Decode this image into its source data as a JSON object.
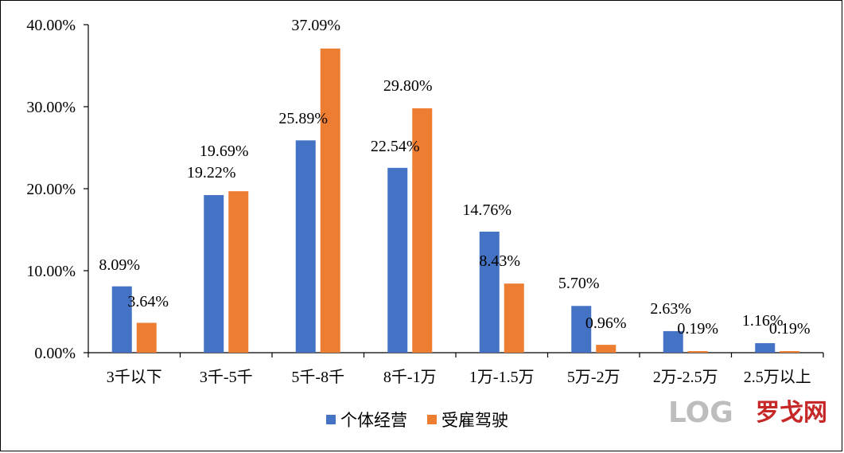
{
  "chart_data": {
    "type": "bar",
    "categories": [
      "3千以下",
      "3千-5千",
      "5千-8千",
      "8千-1万",
      "1万-1.5万",
      "5万-2万",
      "2万-2.5万",
      "2.5万以上"
    ],
    "series": [
      {
        "name": "个体经营",
        "values": [
          8.09,
          19.22,
          25.89,
          22.54,
          14.76,
          5.7,
          2.63,
          1.16
        ],
        "labels": [
          "8.09%",
          "19.22%",
          "25.89%",
          "22.54%",
          "14.76%",
          "5.70%",
          "2.63%",
          "1.16%"
        ],
        "color": "#4472c4"
      },
      {
        "name": "受雇驾驶",
        "values": [
          3.64,
          19.69,
          37.09,
          29.8,
          8.43,
          0.96,
          0.19,
          0.19
        ],
        "labels": [
          "3.64%",
          "19.69%",
          "37.09%",
          "29.80%",
          "8.43%",
          "0.96%",
          "0.19%",
          "0.19%"
        ],
        "color": "#ed7d31"
      }
    ],
    "yticks": [
      "0.00%",
      "10.00%",
      "20.00%",
      "30.00%",
      "40.00%"
    ],
    "ylim": [
      0,
      40
    ],
    "grid": false,
    "legend": "bottom",
    "title": "",
    "xlabel": "",
    "ylabel": ""
  },
  "watermark": {
    "log_text": "LOG",
    "cn_text": "罗戈网"
  }
}
